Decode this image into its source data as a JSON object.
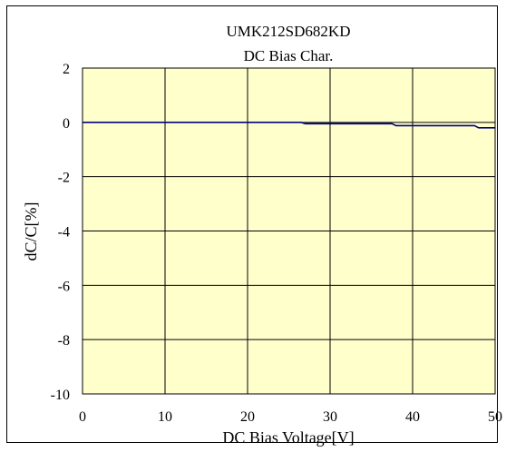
{
  "chart_data": {
    "type": "line",
    "title": "UMK212SD682KD",
    "subtitle": "DC Bias Char.",
    "xlabel": "DC Bias Voltage[V]",
    "ylabel": "dC/C[%]",
    "xlim": [
      0,
      50
    ],
    "ylim": [
      -10,
      2
    ],
    "xticks": [
      0,
      10,
      20,
      30,
      40,
      50
    ],
    "yticks": [
      2,
      0,
      -2,
      -4,
      -6,
      -8,
      -10
    ],
    "grid": true,
    "legend": "none",
    "colors": {
      "plot_bg": "#FFFFCC",
      "line": "#000080",
      "grid": "#000000"
    },
    "series": [
      {
        "x": [
          0,
          10,
          20,
          26.5,
          27,
          30,
          35,
          37.5,
          38,
          40,
          45,
          47.5,
          48,
          50
        ],
        "y": [
          0,
          0,
          0,
          0,
          -0.05,
          -0.05,
          -0.05,
          -0.05,
          -0.12,
          -0.12,
          -0.12,
          -0.12,
          -0.2,
          -0.2
        ]
      }
    ]
  }
}
